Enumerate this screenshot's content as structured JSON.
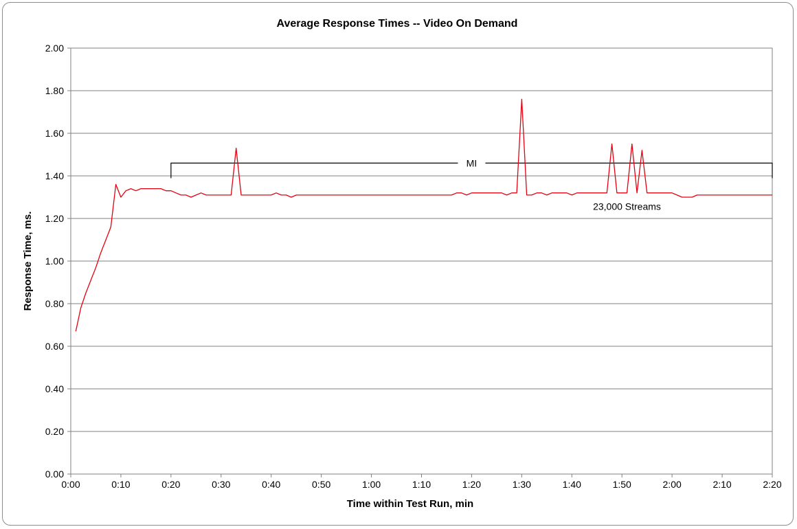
{
  "chart_data": {
    "type": "line",
    "title": "Average Response  Times -- Video On Demand",
    "xlabel": "Time within Test Run, min",
    "ylabel": "Response Time, ms.",
    "xlim": [
      0,
      140
    ],
    "ylim": [
      0,
      2.0
    ],
    "grid": true,
    "x_tick_values": [
      0,
      10,
      20,
      30,
      40,
      50,
      60,
      70,
      80,
      90,
      100,
      110,
      120,
      130,
      140
    ],
    "x_ticks": [
      "0:00",
      "0:10",
      "0:20",
      "0:30",
      "0:40",
      "0:50",
      "1:00",
      "1:10",
      "1:20",
      "1:30",
      "1:40",
      "1:50",
      "2:00",
      "2:10",
      "2:20"
    ],
    "y_tick_values": [
      0,
      0.2,
      0.4,
      0.6,
      0.8,
      1.0,
      1.2,
      1.4,
      1.6,
      1.8,
      2.0
    ],
    "y_ticks": [
      "0.00",
      "0.20",
      "0.40",
      "0.60",
      "0.80",
      "1.00",
      "1.20",
      "1.40",
      "1.60",
      "1.80",
      "2.00"
    ],
    "series": [
      {
        "color": "#e3000f",
        "x": [
          1,
          2,
          3,
          4,
          5,
          6,
          7,
          8,
          9,
          10,
          11,
          12,
          13,
          14,
          15,
          16,
          17,
          18,
          19,
          20,
          21,
          22,
          23,
          24,
          25,
          26,
          27,
          28,
          29,
          30,
          31,
          32,
          33,
          34,
          35,
          36,
          37,
          38,
          39,
          40,
          41,
          42,
          43,
          44,
          45,
          46,
          47,
          48,
          49,
          50,
          51,
          52,
          53,
          54,
          55,
          56,
          57,
          58,
          59,
          60,
          61,
          62,
          63,
          64,
          65,
          66,
          67,
          68,
          69,
          70,
          71,
          72,
          73,
          74,
          75,
          76,
          77,
          78,
          79,
          80,
          81,
          82,
          83,
          84,
          85,
          86,
          87,
          88,
          89,
          90,
          91,
          92,
          93,
          94,
          95,
          96,
          97,
          98,
          99,
          100,
          101,
          102,
          103,
          104,
          105,
          106,
          107,
          108,
          109,
          110,
          111,
          112,
          113,
          114,
          115,
          116,
          117,
          118,
          119,
          120,
          121,
          122,
          123,
          124,
          125,
          126,
          127,
          128,
          129,
          130,
          131,
          132,
          133,
          134,
          135,
          136,
          137,
          138,
          139,
          140
        ],
        "values": [
          0.67,
          0.78,
          0.85,
          0.91,
          0.97,
          1.04,
          1.1,
          1.16,
          1.36,
          1.3,
          1.33,
          1.34,
          1.33,
          1.34,
          1.34,
          1.34,
          1.34,
          1.34,
          1.33,
          1.33,
          1.32,
          1.31,
          1.31,
          1.3,
          1.31,
          1.32,
          1.31,
          1.31,
          1.31,
          1.31,
          1.31,
          1.31,
          1.53,
          1.31,
          1.31,
          1.31,
          1.31,
          1.31,
          1.31,
          1.31,
          1.32,
          1.31,
          1.31,
          1.3,
          1.31,
          1.31,
          1.31,
          1.31,
          1.31,
          1.31,
          1.31,
          1.31,
          1.31,
          1.31,
          1.31,
          1.31,
          1.31,
          1.31,
          1.31,
          1.31,
          1.31,
          1.31,
          1.31,
          1.31,
          1.31,
          1.31,
          1.31,
          1.31,
          1.31,
          1.31,
          1.31,
          1.31,
          1.31,
          1.31,
          1.31,
          1.31,
          1.32,
          1.32,
          1.31,
          1.32,
          1.32,
          1.32,
          1.32,
          1.32,
          1.32,
          1.32,
          1.31,
          1.32,
          1.32,
          1.76,
          1.31,
          1.31,
          1.32,
          1.32,
          1.31,
          1.32,
          1.32,
          1.32,
          1.32,
          1.31,
          1.32,
          1.32,
          1.32,
          1.32,
          1.32,
          1.32,
          1.32,
          1.55,
          1.32,
          1.32,
          1.32,
          1.55,
          1.32,
          1.52,
          1.32,
          1.32,
          1.32,
          1.32,
          1.32,
          1.32,
          1.31,
          1.3,
          1.3,
          1.3,
          1.31,
          1.31,
          1.31,
          1.31,
          1.31,
          1.31,
          1.31,
          1.31,
          1.31,
          1.31,
          1.31,
          1.31,
          1.31,
          1.31,
          1.31,
          1.31
        ]
      }
    ],
    "annotations": {
      "mi_bracket": {
        "label": "MI",
        "x_start": 20,
        "x_end": 140,
        "y": 1.46
      },
      "streams_label": {
        "text": "23,000 Streams",
        "x": 111,
        "y": 1.24
      }
    }
  }
}
